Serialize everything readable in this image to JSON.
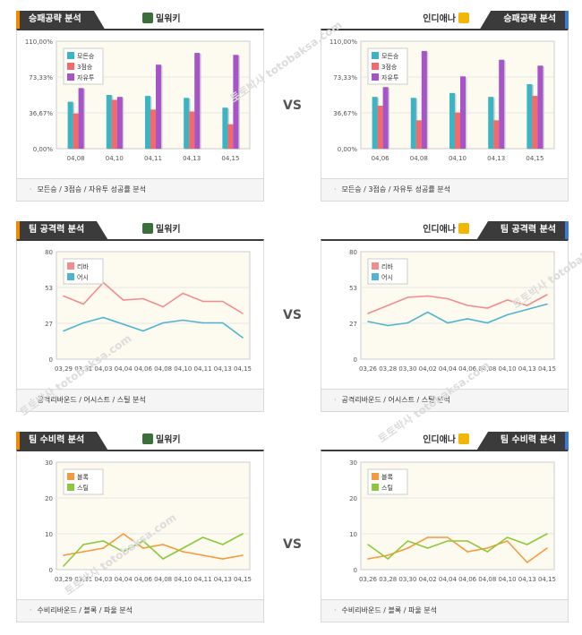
{
  "left_team": {
    "name": "밀워키",
    "logo_color": "#3a6f3a"
  },
  "right_team": {
    "name": "인디애나",
    "logo_color": "#f2b705"
  },
  "vs_label": "VS",
  "watermark": "토토박사 totobaksa.com",
  "panels": {
    "win": {
      "title": "승패공략 분석",
      "footer": "모든승 / 3점승 / 자유투 성공률 분석"
    },
    "atk": {
      "title": "팀 공격력 분석",
      "footer": "공격리바운드 / 어시스트 / 스틸 분석"
    },
    "def": {
      "title": "팀 수비력 분석",
      "footer": "수비리바운드 / 블록 / 파울 분석"
    }
  },
  "colors": {
    "c1": "#3cb4c4",
    "c2": "#f26a6a",
    "c3": "#a654c8",
    "reb": "#f48c8c",
    "ast": "#4fb4cf",
    "blk": "#f59a3c",
    "stl": "#8cc83c"
  },
  "chart_data": [
    {
      "id": "win_left",
      "type": "bar",
      "categories": [
        "04,08",
        "04,10",
        "04,11",
        "04,13",
        "04,15"
      ],
      "yticks": [
        "110,00%",
        "73,33%",
        "36,67%",
        "0,00%"
      ],
      "ylim": [
        0,
        110
      ],
      "series": [
        {
          "name": "모든승",
          "color": "#3cb4c4",
          "values": [
            48,
            55,
            54,
            52,
            42
          ]
        },
        {
          "name": "3점승",
          "color": "#f26a6a",
          "values": [
            36,
            50,
            40,
            38,
            25
          ]
        },
        {
          "name": "자유투",
          "color": "#a654c8",
          "values": [
            62,
            53,
            86,
            98,
            96
          ]
        }
      ]
    },
    {
      "id": "win_right",
      "type": "bar",
      "categories": [
        "04,06",
        "04,08",
        "04,10",
        "04,13",
        "04,15"
      ],
      "yticks": [
        "110,00%",
        "73,33%",
        "36,67%",
        "0,00%"
      ],
      "ylim": [
        0,
        110
      ],
      "series": [
        {
          "name": "모든승",
          "color": "#3cb4c4",
          "values": [
            53,
            52,
            57,
            53,
            66
          ]
        },
        {
          "name": "3점승",
          "color": "#f26a6a",
          "values": [
            44,
            29,
            37,
            29,
            54
          ]
        },
        {
          "name": "자유투",
          "color": "#a654c8",
          "values": [
            63,
            100,
            74,
            91,
            85
          ]
        }
      ]
    },
    {
      "id": "atk_left",
      "type": "line",
      "categories": [
        "03,29",
        "03,31",
        "04,03",
        "04,04",
        "04,06",
        "04,08",
        "04,10",
        "04,11",
        "04,13",
        "04,15"
      ],
      "yticks": [
        "80",
        "53",
        "27",
        "0"
      ],
      "ylim": [
        0,
        80
      ],
      "series": [
        {
          "name": "리바",
          "color": "#f48c8c",
          "values": [
            47,
            41,
            57,
            44,
            45,
            39,
            49,
            43,
            43,
            34
          ]
        },
        {
          "name": "어시",
          "color": "#4fb4cf",
          "values": [
            21,
            27,
            31,
            26,
            21,
            27,
            29,
            27,
            27,
            16
          ]
        }
      ]
    },
    {
      "id": "atk_right",
      "type": "line",
      "categories": [
        "03,26",
        "03,28",
        "03,30",
        "04,02",
        "04,04",
        "04,06",
        "04,08",
        "04,10",
        "04,13",
        "04,15"
      ],
      "yticks": [
        "80",
        "53",
        "27",
        "0"
      ],
      "ylim": [
        0,
        80
      ],
      "series": [
        {
          "name": "리바",
          "color": "#f48c8c",
          "values": [
            34,
            40,
            46,
            47,
            45,
            40,
            38,
            44,
            40,
            48
          ]
        },
        {
          "name": "어시",
          "color": "#4fb4cf",
          "values": [
            28,
            25,
            27,
            35,
            27,
            30,
            27,
            33,
            37,
            41
          ]
        }
      ]
    },
    {
      "id": "def_left",
      "type": "line",
      "categories": [
        "03,29",
        "03,31",
        "04,03",
        "04,04",
        "04,06",
        "04,08",
        "04,10",
        "04,11",
        "04,13",
        "04,15"
      ],
      "yticks": [
        "30",
        "20",
        "10",
        "0"
      ],
      "ylim": [
        0,
        30
      ],
      "series": [
        {
          "name": "블록",
          "color": "#f59a3c",
          "values": [
            4,
            5,
            6,
            10,
            6,
            7,
            5,
            4,
            3,
            4
          ]
        },
        {
          "name": "스틸",
          "color": "#8cc83c",
          "values": [
            1,
            7,
            8,
            5,
            8,
            3,
            6,
            9,
            7,
            10
          ]
        }
      ]
    },
    {
      "id": "def_right",
      "type": "line",
      "categories": [
        "03,26",
        "03,28",
        "03,30",
        "04,02",
        "04,04",
        "04,06",
        "04,08",
        "04,10",
        "04,13",
        "04,15"
      ],
      "yticks": [
        "30",
        "20",
        "10",
        "0"
      ],
      "ylim": [
        0,
        30
      ],
      "series": [
        {
          "name": "블록",
          "color": "#f59a3c",
          "values": [
            3,
            4,
            6,
            9,
            9,
            5,
            6,
            8,
            2,
            6
          ]
        },
        {
          "name": "스틸",
          "color": "#8cc83c",
          "values": [
            7,
            3,
            8,
            6,
            8,
            8,
            5,
            9,
            7,
            10
          ]
        }
      ]
    }
  ]
}
